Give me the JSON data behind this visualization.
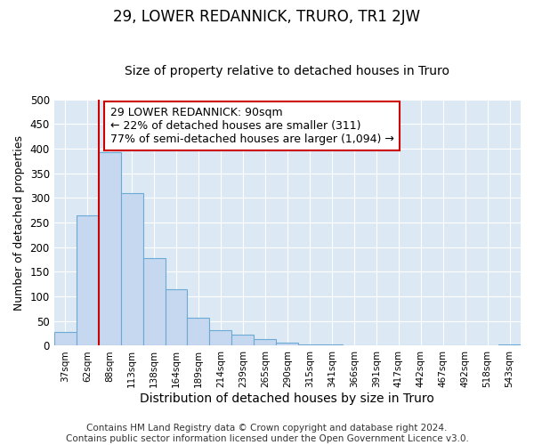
{
  "title": "29, LOWER REDANNICK, TRURO, TR1 2JW",
  "subtitle": "Size of property relative to detached houses in Truro",
  "xlabel": "Distribution of detached houses by size in Truro",
  "ylabel": "Number of detached properties",
  "categories": [
    "37sqm",
    "62sqm",
    "88sqm",
    "113sqm",
    "138sqm",
    "164sqm",
    "189sqm",
    "214sqm",
    "239sqm",
    "265sqm",
    "290sqm",
    "315sqm",
    "341sqm",
    "366sqm",
    "391sqm",
    "417sqm",
    "442sqm",
    "467sqm",
    "492sqm",
    "518sqm",
    "543sqm"
  ],
  "values": [
    28,
    265,
    393,
    310,
    178,
    114,
    57,
    32,
    23,
    14,
    6,
    3,
    2,
    1,
    1,
    0,
    0,
    0,
    0,
    0,
    3
  ],
  "bar_color": "#c5d8ef",
  "bar_edgecolor": "#6aaad4",
  "vline_x": 2.0,
  "vline_color": "#cc0000",
  "annotation_text": "29 LOWER REDANNICK: 90sqm\n← 22% of detached houses are smaller (311)\n77% of semi-detached houses are larger (1,094) →",
  "annotation_box_color": "#ffffff",
  "annotation_box_edgecolor": "#cc0000",
  "ylim": [
    0,
    500
  ],
  "yticks": [
    0,
    50,
    100,
    150,
    200,
    250,
    300,
    350,
    400,
    450,
    500
  ],
  "bg_color": "#dce9f5",
  "fig_bg_color": "#ffffff",
  "footer": "Contains HM Land Registry data © Crown copyright and database right 2024.\nContains public sector information licensed under the Open Government Licence v3.0.",
  "title_fontsize": 12,
  "subtitle_fontsize": 10,
  "xlabel_fontsize": 10,
  "ylabel_fontsize": 9,
  "footer_fontsize": 7.5,
  "annotation_fontsize": 9
}
